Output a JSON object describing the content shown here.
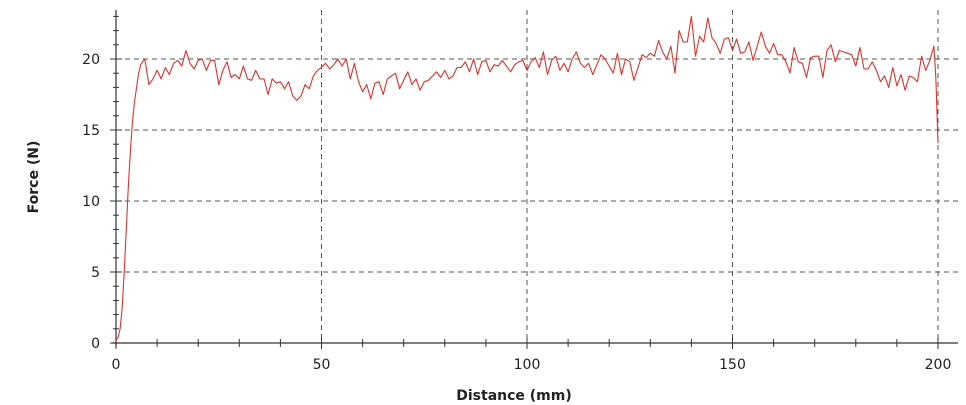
{
  "chart_data": {
    "type": "line",
    "title": "",
    "xlabel": "Distance (mm)",
    "ylabel": "Force (N)",
    "xlim": [
      0,
      200
    ],
    "ylim": [
      0,
      24
    ],
    "x_ticks": [
      0,
      50,
      100,
      150,
      200
    ],
    "x_tick_labels": [
      "0",
      "50",
      "100",
      "150",
      "200"
    ],
    "y_ticks": [
      0,
      5,
      10,
      15,
      20
    ],
    "y_tick_labels": [
      "0",
      "5",
      "10",
      "15",
      "20"
    ],
    "grid": true,
    "legend": "none",
    "colors": {
      "line": "#e0302a",
      "grid": "#555555",
      "axis": "#333333"
    },
    "series": [
      {
        "values": [
          [
            0,
            0.2
          ],
          [
            0.5,
            0.4
          ],
          [
            1,
            1
          ],
          [
            1.5,
            2.5
          ],
          [
            2,
            5
          ],
          [
            2.5,
            8
          ],
          [
            3,
            11
          ],
          [
            3.5,
            13.5
          ],
          [
            4,
            15.5
          ],
          [
            4.5,
            17
          ],
          [
            5,
            18
          ],
          [
            5.5,
            19
          ],
          [
            6,
            19.6
          ],
          [
            6.5,
            19.8
          ],
          [
            7,
            20.0
          ],
          [
            8,
            18.2
          ],
          [
            9,
            18.6
          ],
          [
            10,
            19.2
          ],
          [
            11,
            18.6
          ],
          [
            12,
            19.4
          ],
          [
            13,
            18.9
          ],
          [
            14,
            19.7
          ],
          [
            15,
            19.9
          ],
          [
            16,
            19.5
          ],
          [
            17,
            20.6
          ],
          [
            18,
            19.7
          ],
          [
            19,
            19.3
          ],
          [
            20,
            19.9
          ],
          [
            21,
            20.0
          ],
          [
            22,
            19.2
          ],
          [
            23,
            19.9
          ],
          [
            24,
            19.9
          ],
          [
            25,
            18.2
          ],
          [
            26,
            19.2
          ],
          [
            27,
            19.8
          ],
          [
            28,
            18.7
          ],
          [
            29,
            18.9
          ],
          [
            30,
            18.6
          ],
          [
            31,
            19.5
          ],
          [
            32,
            18.6
          ],
          [
            33,
            18.5
          ],
          [
            34,
            19.2
          ],
          [
            35,
            18.6
          ],
          [
            36,
            18.6
          ],
          [
            37,
            17.5
          ],
          [
            38,
            18.6
          ],
          [
            39,
            18.3
          ],
          [
            40,
            18.4
          ],
          [
            41,
            17.9
          ],
          [
            42,
            18.4
          ],
          [
            43,
            17.4
          ],
          [
            44,
            17.1
          ],
          [
            45,
            17.4
          ],
          [
            46,
            18.2
          ],
          [
            47,
            17.9
          ],
          [
            48,
            18.8
          ],
          [
            49,
            19.2
          ],
          [
            50,
            19.4
          ],
          [
            51,
            19.7
          ],
          [
            52,
            19.3
          ],
          [
            53,
            19.6
          ],
          [
            54,
            20.0
          ],
          [
            55,
            19.5
          ],
          [
            56,
            20.0
          ],
          [
            57,
            18.6
          ],
          [
            58,
            19.7
          ],
          [
            59,
            18.4
          ],
          [
            60,
            17.7
          ],
          [
            61,
            18.2
          ],
          [
            62,
            17.2
          ],
          [
            63,
            18.3
          ],
          [
            64,
            18.4
          ],
          [
            65,
            17.5
          ],
          [
            66,
            18.6
          ],
          [
            67,
            18.8
          ],
          [
            68,
            19.0
          ],
          [
            69,
            17.9
          ],
          [
            70,
            18.5
          ],
          [
            71,
            19.1
          ],
          [
            72,
            18.2
          ],
          [
            73,
            18.6
          ],
          [
            74,
            17.8
          ],
          [
            75,
            18.4
          ],
          [
            76,
            18.5
          ],
          [
            77,
            18.8
          ],
          [
            78,
            19.1
          ],
          [
            79,
            18.7
          ],
          [
            80,
            19.2
          ],
          [
            81,
            18.6
          ],
          [
            82,
            18.8
          ],
          [
            83,
            19.4
          ],
          [
            84,
            19.4
          ],
          [
            85,
            19.8
          ],
          [
            86,
            19.1
          ],
          [
            87,
            20.0
          ],
          [
            88,
            18.9
          ],
          [
            89,
            19.8
          ],
          [
            90,
            19.9
          ],
          [
            91,
            19.1
          ],
          [
            92,
            19.6
          ],
          [
            93,
            19.5
          ],
          [
            94,
            19.9
          ],
          [
            95,
            19.5
          ],
          [
            96,
            19.1
          ],
          [
            97,
            19.6
          ],
          [
            98,
            19.8
          ],
          [
            99,
            19.9
          ],
          [
            100,
            19.2
          ],
          [
            101,
            19.8
          ],
          [
            102,
            20.1
          ],
          [
            103,
            19.4
          ],
          [
            104,
            20.5
          ],
          [
            105,
            18.9
          ],
          [
            106,
            19.9
          ],
          [
            107,
            20.2
          ],
          [
            108,
            19.2
          ],
          [
            109,
            19.7
          ],
          [
            110,
            19.1
          ],
          [
            111,
            20.0
          ],
          [
            112,
            20.5
          ],
          [
            113,
            19.7
          ],
          [
            114,
            19.4
          ],
          [
            115,
            19.7
          ],
          [
            116,
            18.9
          ],
          [
            117,
            19.6
          ],
          [
            118,
            20.3
          ],
          [
            119,
            20.0
          ],
          [
            120,
            19.5
          ],
          [
            121,
            19.0
          ],
          [
            122,
            20.4
          ],
          [
            123,
            18.9
          ],
          [
            124,
            20.0
          ],
          [
            125,
            19.8
          ],
          [
            126,
            18.5
          ],
          [
            127,
            19.4
          ],
          [
            128,
            20.3
          ],
          [
            129,
            20.1
          ],
          [
            130,
            20.4
          ],
          [
            131,
            20.2
          ],
          [
            132,
            21.3
          ],
          [
            133,
            20.5
          ],
          [
            134,
            20.0
          ],
          [
            135,
            20.9
          ],
          [
            136,
            19.0
          ],
          [
            137,
            22.0
          ],
          [
            138,
            21.2
          ],
          [
            139,
            21.2
          ],
          [
            140,
            23.0
          ],
          [
            141,
            20.2
          ],
          [
            142,
            21.6
          ],
          [
            143,
            21.2
          ],
          [
            144,
            22.9
          ],
          [
            145,
            21.5
          ],
          [
            146,
            21.1
          ],
          [
            147,
            20.4
          ],
          [
            148,
            21.4
          ],
          [
            149,
            21.5
          ],
          [
            150,
            20.6
          ],
          [
            151,
            21.4
          ],
          [
            152,
            20.4
          ],
          [
            153,
            20.5
          ],
          [
            154,
            21.2
          ],
          [
            155,
            19.9
          ],
          [
            156,
            20.9
          ],
          [
            157,
            21.9
          ],
          [
            158,
            20.9
          ],
          [
            159,
            20.4
          ],
          [
            160,
            21.1
          ],
          [
            161,
            20.3
          ],
          [
            162,
            20.3
          ],
          [
            163,
            19.8
          ],
          [
            164,
            19.0
          ],
          [
            165,
            20.8
          ],
          [
            166,
            19.8
          ],
          [
            167,
            19.7
          ],
          [
            168,
            18.7
          ],
          [
            169,
            20.1
          ],
          [
            170,
            20.2
          ],
          [
            171,
            20.2
          ],
          [
            172,
            18.7
          ],
          [
            173,
            20.6
          ],
          [
            174,
            21.0
          ],
          [
            175,
            19.8
          ],
          [
            176,
            20.6
          ],
          [
            177,
            20.5
          ],
          [
            178,
            20.4
          ],
          [
            179,
            20.3
          ],
          [
            180,
            19.5
          ],
          [
            181,
            20.8
          ],
          [
            182,
            19.3
          ],
          [
            183,
            19.3
          ],
          [
            184,
            19.8
          ],
          [
            185,
            19.2
          ],
          [
            186,
            18.4
          ],
          [
            187,
            18.8
          ],
          [
            188,
            18.0
          ],
          [
            189,
            19.4
          ],
          [
            190,
            18.1
          ],
          [
            191,
            18.9
          ],
          [
            192,
            17.8
          ],
          [
            193,
            18.8
          ],
          [
            194,
            18.7
          ],
          [
            195,
            18.4
          ],
          [
            196,
            20.2
          ],
          [
            197,
            19.2
          ],
          [
            198,
            19.9
          ],
          [
            199,
            20.9
          ],
          [
            199.5,
            18.6
          ],
          [
            200,
            14.1
          ]
        ]
      }
    ]
  }
}
